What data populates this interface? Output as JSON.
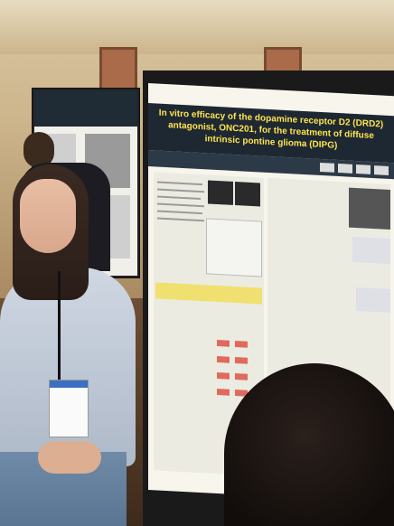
{
  "poster": {
    "title": "In vitro efficacy of the dopamine receptor D2 (DRD2) antagonist, ONC201, for the treatment of diffuse intrinsic pontine glioma (DIPG)"
  },
  "colors": {
    "poster_header": "#1d2833",
    "title_text": "#ffe34d",
    "highlight_box": "#f0e070",
    "shirt": "#c3ccd8",
    "badge_stripe": "#3b6fc2"
  }
}
